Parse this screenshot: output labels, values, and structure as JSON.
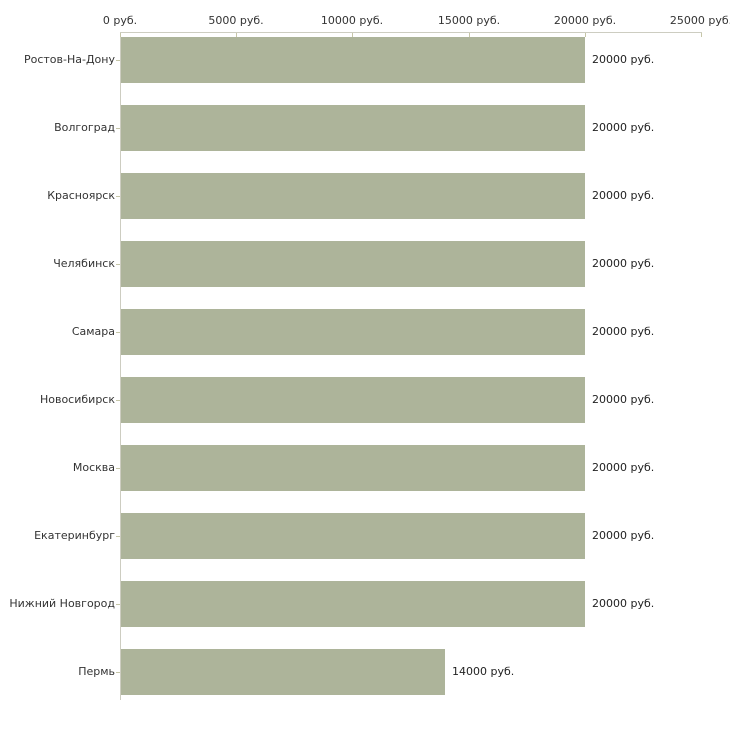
{
  "chart_data": {
    "type": "bar",
    "orientation": "horizontal",
    "title": "",
    "xlabel": "",
    "ylabel": "",
    "xlim": [
      0,
      25000
    ],
    "grid": false,
    "legend": "none",
    "x_ticks": [
      0,
      5000,
      10000,
      15000,
      20000,
      25000
    ],
    "x_tick_labels": [
      "0 руб.",
      "5000 руб.",
      "10000 руб.",
      "15000 руб.",
      "20000 руб.",
      "25000 руб."
    ],
    "categories": [
      "Ростов-На-Дону",
      "Волгоград",
      "Красноярск",
      "Челябинск",
      "Самара",
      "Новосибирск",
      "Москва",
      "Екатеринбург",
      "Нижний Новгород",
      "Пермь"
    ],
    "values": [
      20000,
      20000,
      20000,
      20000,
      20000,
      20000,
      20000,
      20000,
      20000,
      14000
    ],
    "value_labels": [
      "20000 руб.",
      "20000 руб.",
      "20000 руб.",
      "20000 руб.",
      "20000 руб.",
      "20000 руб.",
      "20000 руб.",
      "20000 руб.",
      "20000 руб.",
      "14000 руб."
    ],
    "bar_color": "#adb49a",
    "axis_color": "#cdcdc1",
    "tick_color": "#c6c6a8",
    "text_color": "#333333"
  }
}
